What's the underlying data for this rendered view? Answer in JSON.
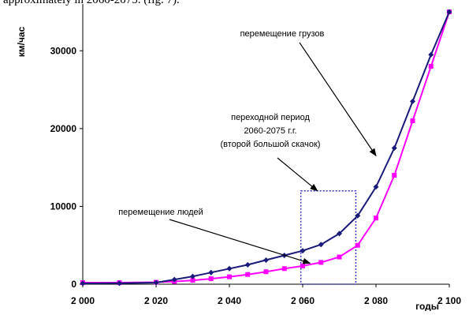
{
  "header_text": "approximately in 2060-2075. (fig. 7).",
  "chart_data": {
    "type": "line",
    "ylabel": "км/час",
    "xlabel": "годы",
    "xlim": [
      2000,
      2100
    ],
    "ylim": [
      0,
      35000
    ],
    "x_ticks": [
      "2 000",
      "2 020",
      "2 040",
      "2 060",
      "2 080",
      "2 100"
    ],
    "x_tick_values": [
      2000,
      2020,
      2040,
      2060,
      2080,
      2100
    ],
    "y_ticks": [
      "0",
      "10000",
      "20000",
      "30000"
    ],
    "y_tick_values": [
      0,
      10000,
      20000,
      30000
    ],
    "grid": false,
    "series": [
      {
        "name": "перемещение грузов",
        "color": "#1a1a7a",
        "marker": "diamond",
        "x": [
          2000,
          2010,
          2020,
          2025,
          2030,
          2035,
          2040,
          2045,
          2050,
          2055,
          2060,
          2065,
          2070,
          2075,
          2080,
          2085,
          2090,
          2095,
          2100
        ],
        "y": [
          100,
          120,
          200,
          600,
          1000,
          1500,
          2000,
          2500,
          3100,
          3700,
          4300,
          5100,
          6500,
          8800,
          12500,
          17500,
          23500,
          29500,
          35000
        ]
      },
      {
        "name": "перемещение людей",
        "color": "#ff00ff",
        "marker": "square",
        "x": [
          2000,
          2010,
          2020,
          2025,
          2030,
          2035,
          2040,
          2045,
          2050,
          2055,
          2060,
          2065,
          2070,
          2075,
          2080,
          2085,
          2090,
          2095,
          2100
        ],
        "y": [
          200,
          200,
          250,
          350,
          500,
          700,
          950,
          1250,
          1600,
          2000,
          2350,
          2800,
          3500,
          5000,
          8500,
          14000,
          21000,
          28000,
          35000
        ]
      }
    ],
    "annotations": [
      {
        "id": "freight",
        "text": "перемещение грузов",
        "arrow_to": [
          2080,
          16500
        ]
      },
      {
        "id": "people",
        "text": "перемещение людей",
        "arrow_to": [
          2062,
          2700
        ]
      },
      {
        "id": "transition",
        "text_lines": [
          "переходной период",
          "2060-2075 г.г.",
          "(второй большой скачок)"
        ],
        "arrow_to": [
          2064,
          12000
        ]
      }
    ],
    "highlight_box": {
      "x0": 2059.5,
      "x1": 2074.5,
      "y0": 0,
      "y1": 12000,
      "style": "dotted",
      "color": "#3333cc"
    }
  }
}
